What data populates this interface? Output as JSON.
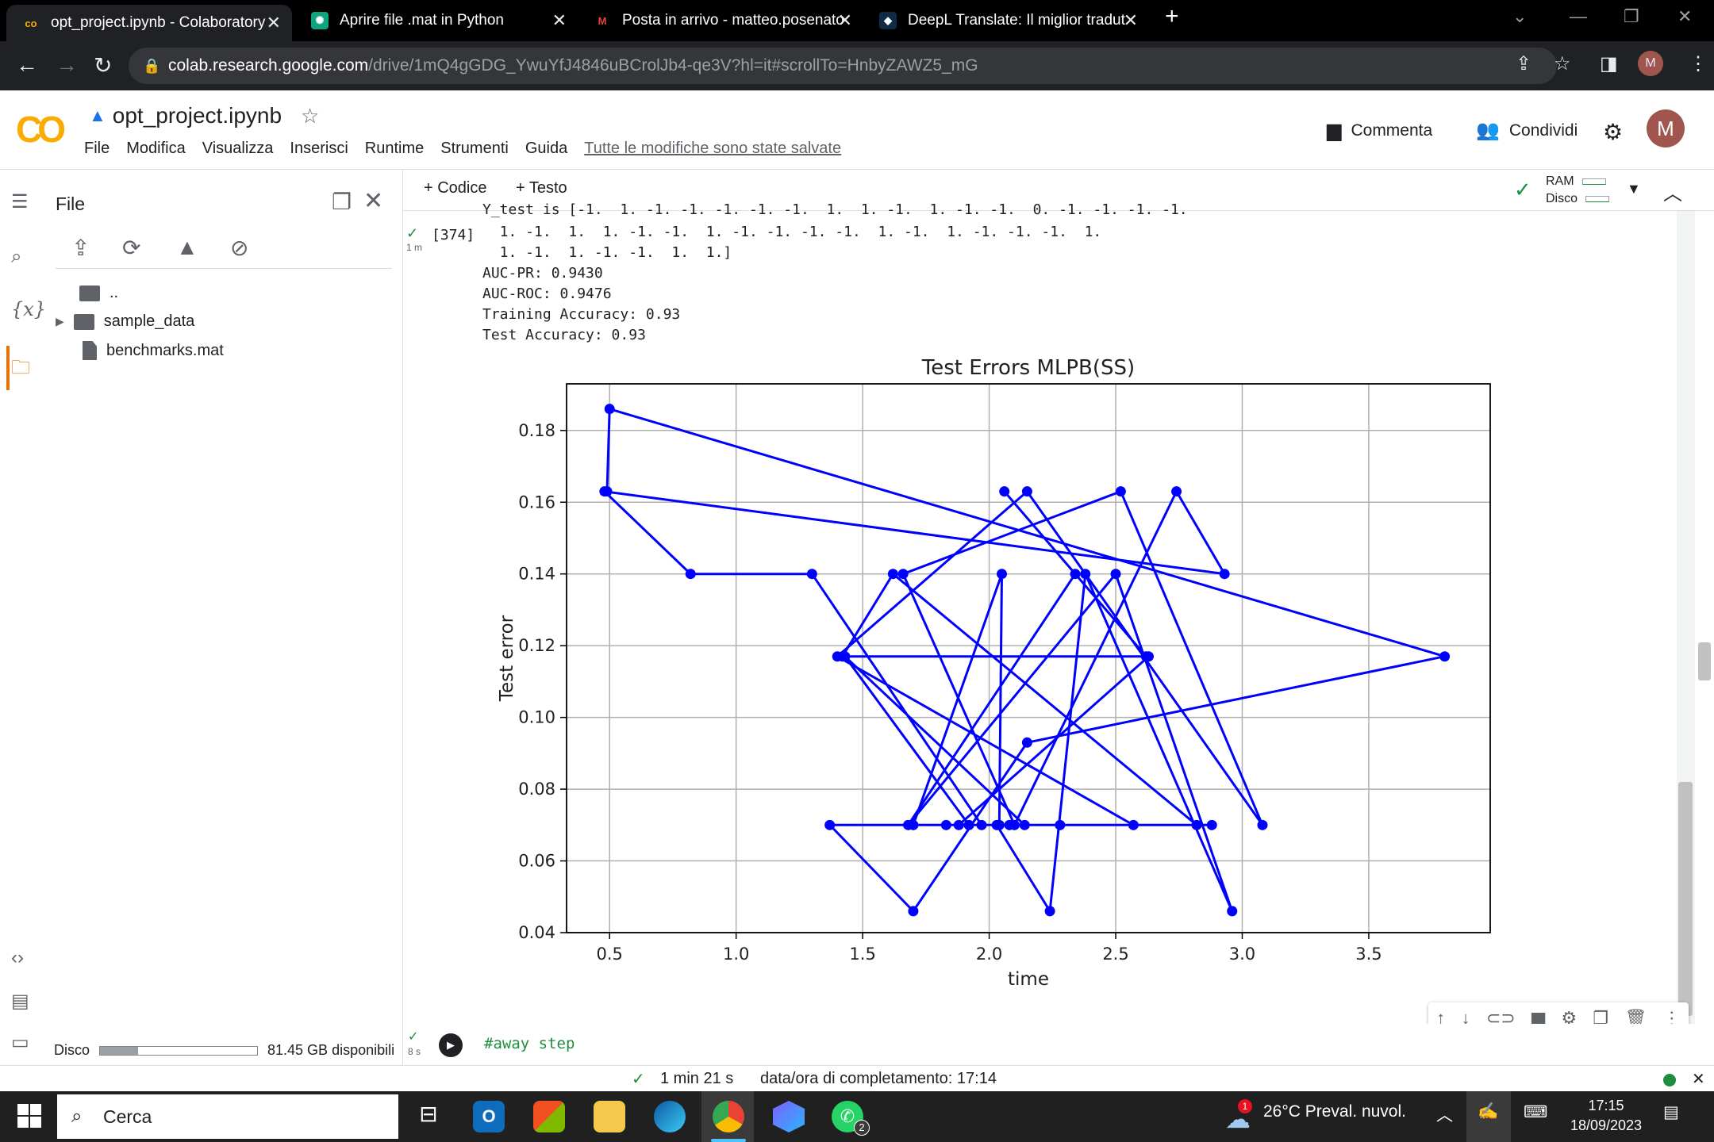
{
  "browser": {
    "tabs": [
      {
        "title": "opt_project.ipynb - Colaboratory",
        "active": true
      },
      {
        "title": "Aprire file .mat in Python",
        "active": false
      },
      {
        "title": "Posta in arrivo - matteo.posenato",
        "active": false
      },
      {
        "title": "DeepL Translate: Il miglior tradut",
        "active": false
      }
    ],
    "url_host": "colab.research.google.com",
    "url_path": "/drive/1mQ4gGDG_YwuYfJ4846uBCrolJb4-qe3V?hl=it#scrollTo=HnbyZAWZ5_mG",
    "profile_initial": "M"
  },
  "colab": {
    "notebook_title": "opt_project.ipynb",
    "menu": [
      "File",
      "Modifica",
      "Visualizza",
      "Inserisci",
      "Runtime",
      "Strumenti",
      "Guida"
    ],
    "saved_status": "Tutte le modifiche sono state salvate",
    "comment_label": "Commenta",
    "share_label": "Condividi",
    "avatar_initial": "M"
  },
  "file_panel": {
    "title": "File",
    "items": [
      {
        "name": "..",
        "type": "up"
      },
      {
        "name": "sample_data",
        "type": "folder"
      },
      {
        "name": "benchmarks.mat",
        "type": "file"
      }
    ],
    "disk_label": "Disco",
    "disk_free": "81.45 GB disponibili",
    "disk_used_fraction": 0.24
  },
  "toolbar": {
    "code_label": "+ Codice",
    "text_label": "+ Testo",
    "ram_label": "RAM",
    "disk_label": "Disco"
  },
  "cell": {
    "exec_count": "[374]",
    "exec_time": "1 m",
    "output_lines": [
      "Y_test is [-1.  1. -1. -1. -1. -1. -1.  1.  1. -1.  1. -1. -1.  0. -1. -1. -1. -1.",
      "  1. -1.  1.  1. -1. -1.  1. -1. -1. -1. -1.  1. -1.  1. -1. -1. -1.  1.",
      "  1. -1.  1. -1. -1.  1.  1.]",
      "AUC-PR: 0.9430",
      "AUC-ROC: 0.9476",
      "Training Accuracy: 0.93",
      "Test Accuracy: 0.93"
    ]
  },
  "chart_data": {
    "type": "line",
    "title": "Test Errors MLPB(SS)",
    "xlabel": "time",
    "ylabel": "Test error",
    "xlim": [
      0.33,
      3.98
    ],
    "ylim": [
      0.04,
      0.193
    ],
    "xticks": [
      "0.5",
      "1.0",
      "1.5",
      "2.0",
      "2.5",
      "3.0",
      "3.5"
    ],
    "yticks": [
      "0.04",
      "0.06",
      "0.08",
      "0.10",
      "0.12",
      "0.14",
      "0.16",
      "0.18"
    ],
    "grid": true,
    "color": "#0000ff",
    "series": [
      {
        "x": [
          0.49,
          0.5,
          3.8,
          2.15,
          1.7,
          1.37,
          1.83,
          2.88,
          2.57,
          1.4,
          2.15,
          3.08,
          2.52,
          1.66,
          2.1,
          2.74,
          2.93,
          0.48,
          0.82,
          1.3,
          1.97,
          2.04,
          2.05,
          1.7,
          2.28,
          2.03,
          2.24,
          2.38,
          2.96,
          2.5,
          1.68,
          2.34,
          2.06,
          2.62,
          1.43,
          1.92,
          2.08,
          1.88,
          2.63,
          1.43,
          2.14,
          2.82,
          1.62,
          1.42
        ],
        "y": [
          0.163,
          0.186,
          0.117,
          0.093,
          0.046,
          0.07,
          0.07,
          0.07,
          0.07,
          0.117,
          0.163,
          0.07,
          0.163,
          0.14,
          0.07,
          0.163,
          0.14,
          0.163,
          0.14,
          0.14,
          0.07,
          0.07,
          0.14,
          0.07,
          0.07,
          0.07,
          0.046,
          0.14,
          0.046,
          0.14,
          0.07,
          0.14,
          0.163,
          0.117,
          0.117,
          0.07,
          0.07,
          0.07,
          0.117,
          0.117,
          0.07,
          0.07,
          0.14,
          0.117
        ]
      }
    ]
  },
  "next_cell": {
    "code": "#away step",
    "exec_time": "8 s"
  },
  "status": {
    "duration": "1 min 21 s",
    "completion": "data/ora di completamento: 17:14"
  },
  "taskbar": {
    "search_placeholder": "Cerca",
    "weather": "26°C  Preval. nuvol.",
    "time": "17:15",
    "date": "18/09/2023",
    "whatsapp_badge": "2",
    "weather_badge": "1"
  }
}
